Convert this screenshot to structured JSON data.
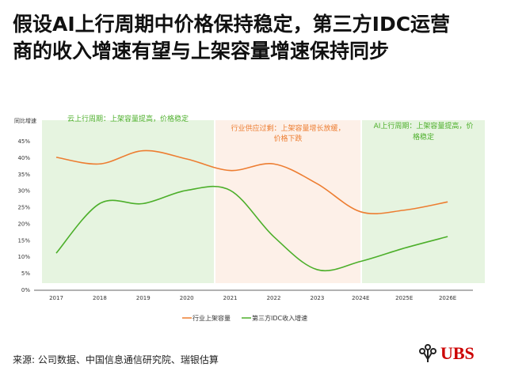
{
  "title": "假设AI上行周期中价格保持稳定，第三方IDC运营商的收入增速有望与上架容量增速保持同步",
  "source": "来源: 公司数据、中国信息通信研究院、瑞银估算",
  "logo": "UBS",
  "chart_data": {
    "type": "line",
    "ylabel": "同比增速",
    "ylim": [
      0,
      45
    ],
    "yticks": [
      "0%",
      "5%",
      "10%",
      "15%",
      "20%",
      "25%",
      "30%",
      "35%",
      "40%",
      "45%"
    ],
    "categories": [
      "2017",
      "2018",
      "2019",
      "2020",
      "2021",
      "2022",
      "2023",
      "2024E",
      "2025E",
      "2026E"
    ],
    "series": [
      {
        "name": "行业上架容量",
        "color": "#ed7d31",
        "values": [
          40,
          38,
          42,
          39.5,
          36,
          38,
          32,
          23.5,
          24,
          26.5
        ]
      },
      {
        "name": "第三方IDC收入增速",
        "color": "#4caf2a",
        "values": [
          11,
          26,
          26,
          30,
          30,
          16,
          6,
          8.5,
          12.5,
          16
        ]
      }
    ],
    "legend": "bottom",
    "bands": [
      {
        "label": "云上行周期：上架容量提高，价格稳定",
        "color": "#e6f4e0",
        "text_color": "#4caf2a"
      },
      {
        "label": "行业供应过剩：上架容量增长放缓，价格下跌",
        "color": "#fdf0e8",
        "text_color": "#ed7d31"
      },
      {
        "label": "AI上行周期：上架容量提高，价格稳定",
        "color": "#e6f4e0",
        "text_color": "#4caf2a"
      }
    ]
  }
}
